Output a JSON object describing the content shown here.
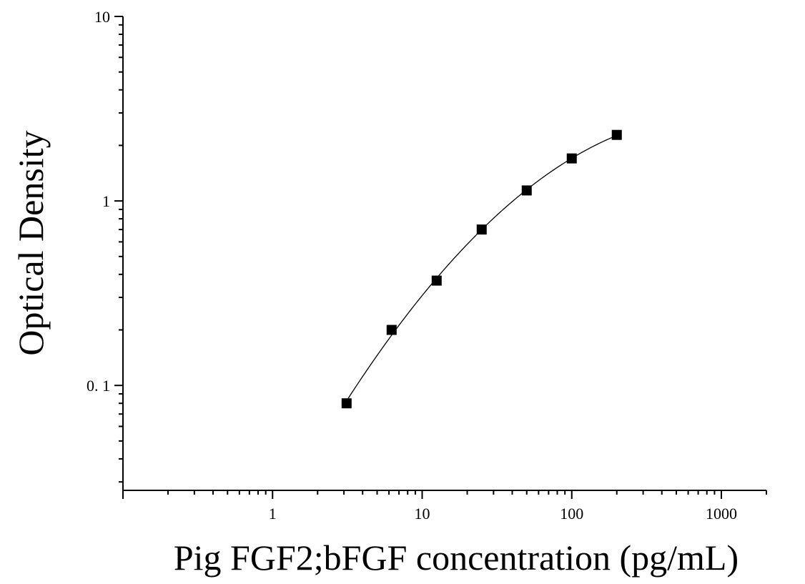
{
  "chart_data": {
    "type": "scatter",
    "title": "",
    "xlabel": "Pig FGF2;bFGF concentration (pg/mL)",
    "ylabel": "Optical Density",
    "x_scale": "log",
    "y_scale": "log",
    "xlim": [
      0.1,
      2000
    ],
    "ylim": [
      0.027,
      10
    ],
    "x_ticks": [
      {
        "value": 1,
        "label": "1"
      },
      {
        "value": 10,
        "label": "10"
      },
      {
        "value": 100,
        "label": "100"
      },
      {
        "value": 1000,
        "label": "1000"
      }
    ],
    "y_ticks": [
      {
        "value": 0.1,
        "label": "0. 1"
      },
      {
        "value": 1,
        "label": "1"
      },
      {
        "value": 10,
        "label": "10"
      }
    ],
    "grid": false,
    "legend": "none",
    "marker": "square",
    "marker_color": "#000000",
    "curve_color": "#000000",
    "fitted_curve": true,
    "series": [
      {
        "x": [
          3.125,
          6.25,
          12.5,
          25,
          50,
          100,
          200
        ],
        "y": [
          0.08,
          0.2,
          0.37,
          0.7,
          1.14,
          1.7,
          2.28
        ]
      }
    ]
  }
}
